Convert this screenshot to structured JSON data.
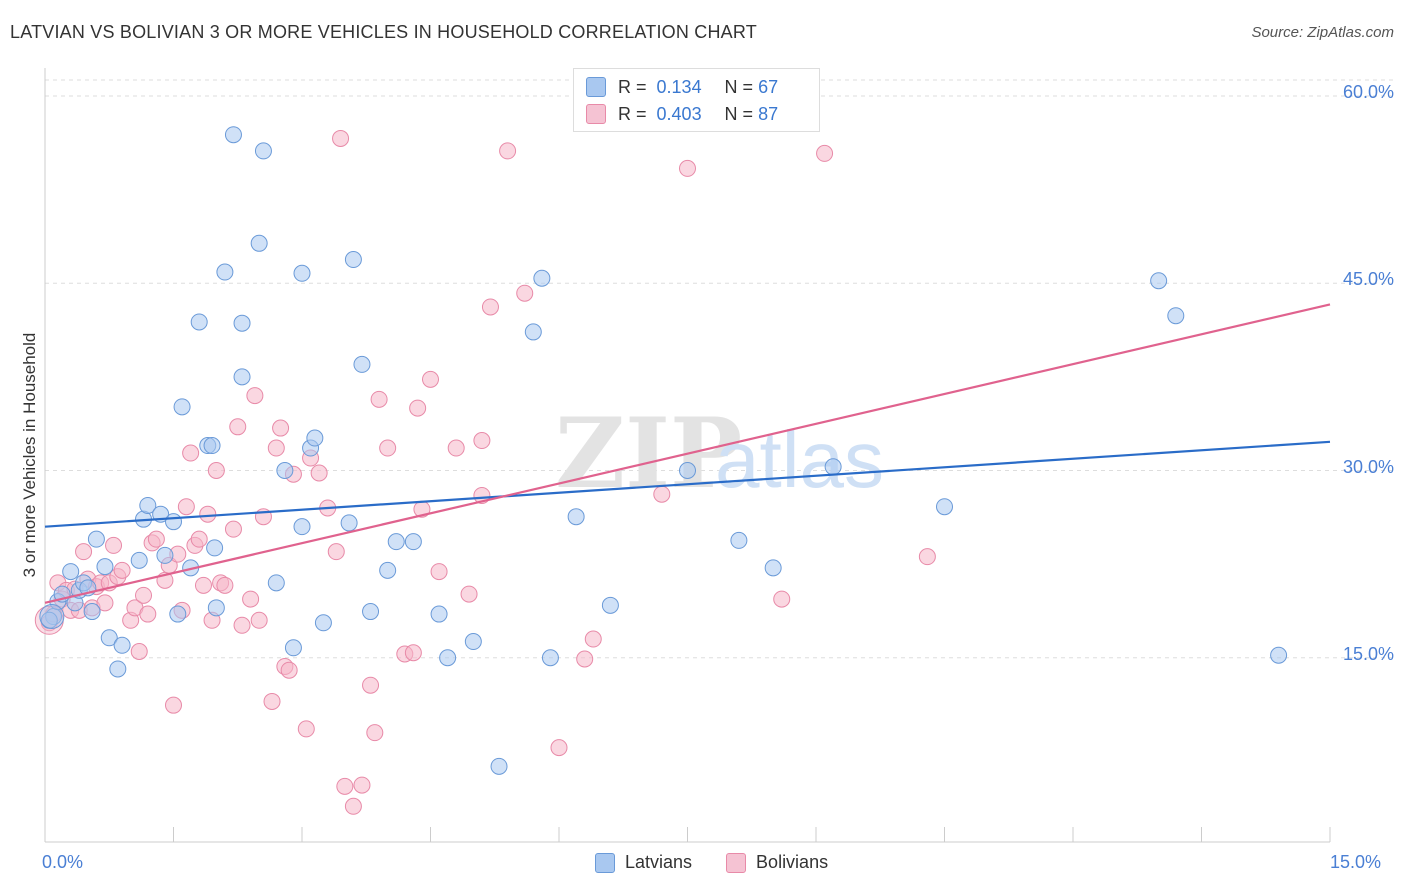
{
  "header": {
    "title": "LATVIAN VS BOLIVIAN 3 OR MORE VEHICLES IN HOUSEHOLD CORRELATION CHART",
    "source": "Source: ZipAtlas.com"
  },
  "legend": {
    "rows": [
      {
        "r_label": "R =",
        "r_value": "0.134",
        "n_label": "N =",
        "n_value": "67"
      },
      {
        "r_label": "R =",
        "r_value": "0.403",
        "n_label": "N =",
        "n_value": "87"
      }
    ]
  },
  "bottom_legend": {
    "latvians": "Latvians",
    "bolivians": "Bolivians"
  },
  "colors": {
    "latvian_fill": "#a9c8f0",
    "latvian_stroke": "#6a9ad8",
    "latvian_line": "#2a6cc8",
    "bolivian_fill": "#f5b6c9",
    "bolivian_stroke": "#e88aa8",
    "bolivian_line": "#e0628e",
    "tick_text": "#4a7fd4",
    "grid": "#dddddd"
  },
  "chart_data": {
    "type": "scatter",
    "title": "LATVIAN VS BOLIVIAN 3 OR MORE VEHICLES IN HOUSEHOLD CORRELATION CHART",
    "ylabel": "3 or more Vehicles in Household",
    "xlabel": "",
    "xlim": [
      0,
      15
    ],
    "ylim": [
      0,
      60
    ],
    "x_tick_labels": [
      "0.0%",
      "15.0%"
    ],
    "y_ticks": [
      15,
      30,
      45,
      60
    ],
    "y_tick_labels": [
      "15.0%",
      "30.0%",
      "45.0%",
      "60.0%"
    ],
    "grid": true,
    "watermark": "ZIPatlas",
    "series": [
      {
        "name": "Latvians",
        "R": 0.134,
        "N": 67,
        "trend": {
          "x": [
            0,
            15
          ],
          "y": [
            25.5,
            32.3
          ]
        },
        "points": [
          [
            0.1,
            18.3
          ],
          [
            0.15,
            19.5
          ],
          [
            0.2,
            20.1
          ],
          [
            0.3,
            21.9
          ],
          [
            0.35,
            19.4
          ],
          [
            0.4,
            20.4
          ],
          [
            0.45,
            21.0
          ],
          [
            0.5,
            20.6
          ],
          [
            0.55,
            18.7
          ],
          [
            0.6,
            24.5
          ],
          [
            0.7,
            22.3
          ],
          [
            0.75,
            16.6
          ],
          [
            0.9,
            16.0
          ],
          [
            0.85,
            14.1
          ],
          [
            1.1,
            22.8
          ],
          [
            1.15,
            26.1
          ],
          [
            1.2,
            27.2
          ],
          [
            1.35,
            26.5
          ],
          [
            1.4,
            23.2
          ],
          [
            1.5,
            25.9
          ],
          [
            1.55,
            18.5
          ],
          [
            1.6,
            35.1
          ],
          [
            1.7,
            22.2
          ],
          [
            1.8,
            41.9
          ],
          [
            1.9,
            32.0
          ],
          [
            1.95,
            32.0
          ],
          [
            1.98,
            23.8
          ],
          [
            2.0,
            19.0
          ],
          [
            2.1,
            45.9
          ],
          [
            2.2,
            56.9
          ],
          [
            2.3,
            41.8
          ],
          [
            2.3,
            37.5
          ],
          [
            2.5,
            48.2
          ],
          [
            2.55,
            55.6
          ],
          [
            2.7,
            21.0
          ],
          [
            2.8,
            30.0
          ],
          [
            2.9,
            15.8
          ],
          [
            3.0,
            25.5
          ],
          [
            3.0,
            45.8
          ],
          [
            3.1,
            31.8
          ],
          [
            3.15,
            32.6
          ],
          [
            3.25,
            17.8
          ],
          [
            3.55,
            25.8
          ],
          [
            3.6,
            46.9
          ],
          [
            3.7,
            38.5
          ],
          [
            3.8,
            18.7
          ],
          [
            4.0,
            22.0
          ],
          [
            4.1,
            24.3
          ],
          [
            4.3,
            24.3
          ],
          [
            4.6,
            18.5
          ],
          [
            4.7,
            15.0
          ],
          [
            5.0,
            16.3
          ],
          [
            5.3,
            6.3
          ],
          [
            5.7,
            41.1
          ],
          [
            5.8,
            45.4
          ],
          [
            5.9,
            15.0
          ],
          [
            6.2,
            26.3
          ],
          [
            6.6,
            19.2
          ],
          [
            7.5,
            30.0
          ],
          [
            8.1,
            24.4
          ],
          [
            8.5,
            22.2
          ],
          [
            9.2,
            30.3
          ],
          [
            10.5,
            27.1
          ],
          [
            13.0,
            45.2
          ],
          [
            13.2,
            42.4
          ],
          [
            14.4,
            15.2
          ],
          [
            0.05,
            18.0
          ]
        ]
      },
      {
        "name": "Bolivians",
        "R": 0.403,
        "N": 87,
        "trend": {
          "x": [
            0,
            15
          ],
          "y": [
            19.4,
            43.3
          ]
        },
        "points": [
          [
            0.05,
            17.8
          ],
          [
            0.1,
            18.5
          ],
          [
            0.15,
            21.0
          ],
          [
            0.2,
            19.7
          ],
          [
            0.25,
            20.4
          ],
          [
            0.3,
            18.8
          ],
          [
            0.35,
            20.5
          ],
          [
            0.4,
            18.8
          ],
          [
            0.45,
            23.5
          ],
          [
            0.5,
            21.3
          ],
          [
            0.55,
            19.0
          ],
          [
            0.6,
            20.7
          ],
          [
            0.65,
            21.0
          ],
          [
            0.7,
            19.4
          ],
          [
            0.75,
            21.0
          ],
          [
            0.8,
            24.0
          ],
          [
            0.85,
            21.5
          ],
          [
            0.9,
            22.0
          ],
          [
            1.0,
            18.0
          ],
          [
            1.05,
            19.0
          ],
          [
            1.1,
            15.5
          ],
          [
            1.15,
            20.0
          ],
          [
            1.2,
            18.5
          ],
          [
            1.25,
            24.2
          ],
          [
            1.3,
            24.5
          ],
          [
            1.4,
            21.2
          ],
          [
            1.45,
            22.4
          ],
          [
            1.5,
            11.2
          ],
          [
            1.55,
            23.3
          ],
          [
            1.6,
            18.8
          ],
          [
            1.65,
            27.1
          ],
          [
            1.7,
            31.4
          ],
          [
            1.75,
            24.0
          ],
          [
            1.8,
            24.5
          ],
          [
            1.85,
            20.8
          ],
          [
            1.9,
            26.5
          ],
          [
            1.95,
            18.0
          ],
          [
            2.0,
            30.0
          ],
          [
            2.05,
            21.0
          ],
          [
            2.1,
            20.8
          ],
          [
            2.2,
            25.3
          ],
          [
            2.25,
            33.5
          ],
          [
            2.3,
            17.6
          ],
          [
            2.4,
            19.7
          ],
          [
            2.45,
            36.0
          ],
          [
            2.5,
            18.0
          ],
          [
            2.55,
            26.3
          ],
          [
            2.65,
            11.5
          ],
          [
            2.7,
            31.8
          ],
          [
            2.75,
            33.4
          ],
          [
            2.8,
            14.3
          ],
          [
            2.85,
            14.0
          ],
          [
            2.9,
            29.7
          ],
          [
            3.05,
            9.3
          ],
          [
            3.1,
            31.0
          ],
          [
            3.2,
            29.8
          ],
          [
            3.3,
            27.0
          ],
          [
            3.4,
            23.5
          ],
          [
            3.45,
            56.6
          ],
          [
            3.5,
            4.7
          ],
          [
            3.6,
            3.1
          ],
          [
            3.7,
            4.8
          ],
          [
            3.8,
            12.8
          ],
          [
            3.85,
            9.0
          ],
          [
            3.9,
            35.7
          ],
          [
            4.0,
            31.8
          ],
          [
            4.2,
            15.3
          ],
          [
            4.3,
            15.4
          ],
          [
            4.35,
            35.0
          ],
          [
            4.4,
            26.9
          ],
          [
            4.5,
            37.3
          ],
          [
            4.6,
            21.9
          ],
          [
            4.8,
            31.8
          ],
          [
            4.95,
            20.1
          ],
          [
            5.1,
            32.4
          ],
          [
            5.1,
            28.0
          ],
          [
            5.2,
            43.1
          ],
          [
            5.4,
            55.6
          ],
          [
            5.6,
            44.2
          ],
          [
            6.0,
            7.8
          ],
          [
            6.3,
            14.9
          ],
          [
            6.4,
            16.5
          ],
          [
            7.2,
            28.1
          ],
          [
            7.5,
            54.2
          ],
          [
            8.6,
            19.7
          ],
          [
            9.1,
            55.4
          ],
          [
            10.3,
            23.1
          ]
        ]
      }
    ]
  }
}
